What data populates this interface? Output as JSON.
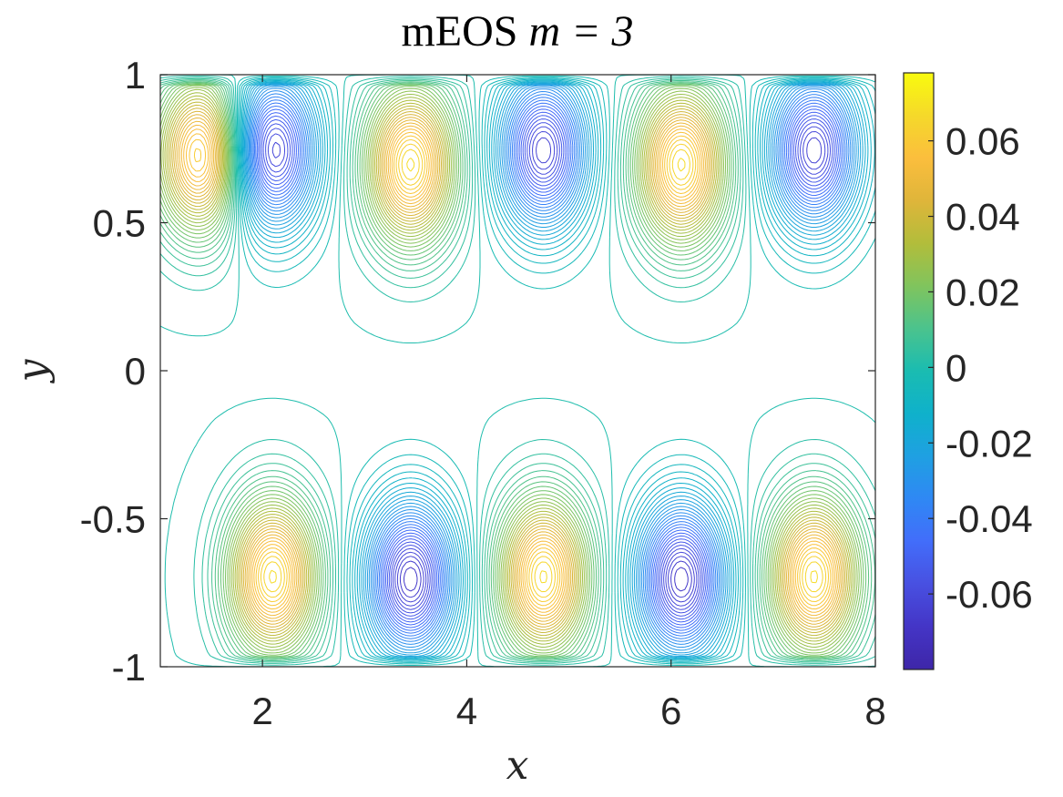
{
  "chart_data": {
    "type": "contour",
    "title": "mEOS m = 3",
    "title_parts": {
      "prefix": "mEOS ",
      "math": "m = 3"
    },
    "xlabel": "x",
    "ylabel": "y",
    "xlim": [
      1,
      8
    ],
    "ylim": [
      -1,
      1
    ],
    "x_ticks": [
      2,
      4,
      6,
      8
    ],
    "x_tick_labels": [
      "2",
      "4",
      "6",
      "8"
    ],
    "y_ticks": [
      1,
      0.5,
      0,
      -0.5,
      -1
    ],
    "y_tick_labels": [
      "1",
      "0.5",
      "0",
      "-0.5",
      "-1"
    ],
    "colorbar": {
      "limits": [
        -0.08,
        0.078
      ],
      "ticks": [
        0.06,
        0.04,
        0.02,
        0,
        -0.02,
        -0.04,
        -0.06
      ],
      "tick_labels": [
        "0.06",
        "0.04",
        "0.02",
        "0",
        "-0.02",
        "-0.04",
        "-0.06"
      ],
      "colormap": "parula",
      "colormap_stops": [
        "#3e26a8",
        "#4435c6",
        "#4850e1",
        "#426dfa",
        "#2f88f4",
        "#1fa0e2",
        "#0fb1cb",
        "#1abcb1",
        "#4bc38d",
        "#80c45d",
        "#b2bd3b",
        "#dfb53a",
        "#fbbe3d",
        "#f5d92a",
        "#f9fb0e"
      ]
    },
    "field": {
      "description_of_extrema": "alternating positive/negative lobes",
      "positive_maxima": [
        {
          "x": 1.4,
          "y": 0.78
        },
        {
          "x": 3.45,
          "y": 0.74
        },
        {
          "x": 6.1,
          "y": 0.74
        },
        {
          "x": 2.1,
          "y": -0.74
        },
        {
          "x": 4.75,
          "y": -0.74
        },
        {
          "x": 7.4,
          "y": -0.74
        }
      ],
      "negative_minima": [
        {
          "x": 2.1,
          "y": 0.8
        },
        {
          "x": 4.75,
          "y": 0.8
        },
        {
          "x": 7.4,
          "y": 0.8
        },
        {
          "x": 3.45,
          "y": -0.75
        },
        {
          "x": 6.1,
          "y": -0.75
        }
      ],
      "peak_value": 0.078,
      "trough_value": -0.08
    },
    "grid": false
  }
}
